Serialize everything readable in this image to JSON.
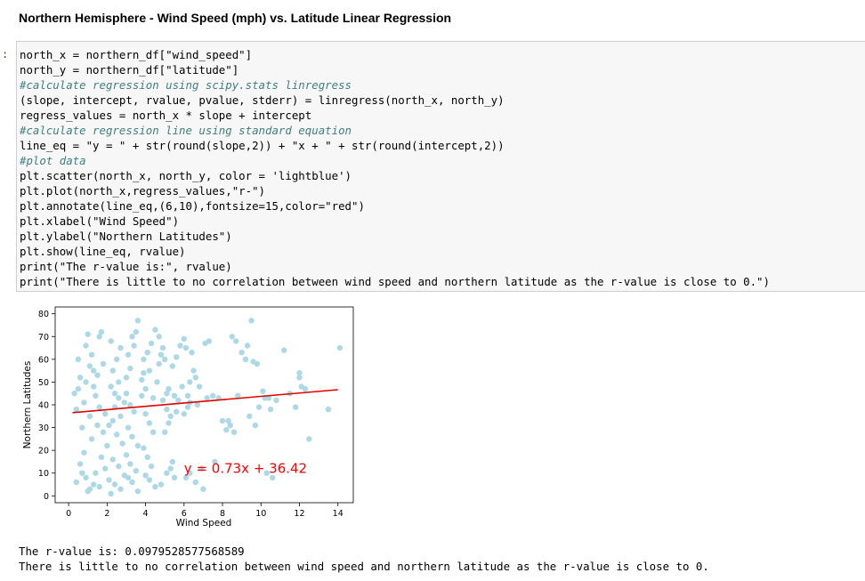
{
  "heading": "Northern Hemisphere - Wind Speed (mph) vs. Latitude Linear Regression",
  "cell": {
    "prompt": ":",
    "code_lines": [
      "north_x = northern_df[\"wind_speed\"]",
      "north_y = northern_df[\"latitude\"]",
      "#calculate regression using scipy.stats linregress",
      "(slope, intercept, rvalue, pvalue, stderr) = linregress(north_x, north_y)",
      "regress_values = north_x * slope + intercept",
      "#calculate regression line using standard equation",
      "line_eq = \"y = \" + str(round(slope,2)) + \"x + \" + str(round(intercept,2))",
      "#plot data",
      "plt.scatter(north_x, north_y, color = 'lightblue')",
      "plt.plot(north_x,regress_values,\"r-\")",
      "plt.annotate(line_eq,(6,10),fontsize=15,color=\"red\")",
      "plt.xlabel(\"Wind Speed\")",
      "plt.ylabel(\"Northern Latitudes\")",
      "plt.show(line_eq, rvalue)",
      "print(\"The r-value is:\", rvalue)",
      "print(\"There is little to no correlation between wind speed and northern latitude as the r-value is close to 0.\")"
    ]
  },
  "output": {
    "line1": "The r-value is: 0.0979528577568589",
    "line2": "There is little to no correlation between wind speed and northern latitude as the r-value is close to 0."
  },
  "colors": {
    "points": "#add8e6",
    "regression": "#e00000",
    "annotation": "#ff0000"
  },
  "chart_data": {
    "type": "scatter",
    "xlabel": "Wind Speed",
    "ylabel": "Northern Latitudes",
    "xlim": [
      -0.7,
      14.8
    ],
    "ylim": [
      -3,
      83
    ],
    "xticks": [
      0,
      2,
      4,
      6,
      8,
      10,
      12,
      14
    ],
    "yticks": [
      0,
      10,
      20,
      30,
      40,
      50,
      60,
      70,
      80
    ],
    "grid": false,
    "annotation": {
      "text": "y = 0.73x + 36.42",
      "x": 6,
      "y": 10
    },
    "regression": {
      "slope": 0.73,
      "intercept": 36.42,
      "x_range": [
        0.2,
        14.0
      ]
    },
    "points": [
      [
        0.3,
        45
      ],
      [
        0.4,
        38
      ],
      [
        0.5,
        47
      ],
      [
        0.6,
        52
      ],
      [
        0.7,
        30
      ],
      [
        0.8,
        41
      ],
      [
        0.5,
        60
      ],
      [
        0.9,
        66
      ],
      [
        1.0,
        71
      ],
      [
        1.1,
        35
      ],
      [
        1.2,
        25
      ],
      [
        0.6,
        14
      ],
      [
        0.8,
        19
      ],
      [
        0.9,
        8
      ],
      [
        1.1,
        3
      ],
      [
        1.3,
        5
      ],
      [
        1.4,
        10
      ],
      [
        0.4,
        6
      ],
      [
        0.7,
        10
      ],
      [
        1.0,
        2
      ],
      [
        1.3,
        48
      ],
      [
        1.5,
        53
      ],
      [
        1.6,
        70
      ],
      [
        1.7,
        72
      ],
      [
        1.2,
        62
      ],
      [
        1.8,
        58
      ],
      [
        1.4,
        44
      ],
      [
        1.6,
        39
      ],
      [
        1.9,
        36
      ],
      [
        1.5,
        31
      ],
      [
        1.8,
        28
      ],
      [
        2.0,
        22
      ],
      [
        1.7,
        17
      ],
      [
        1.9,
        12
      ],
      [
        2.1,
        7
      ],
      [
        1.6,
        4
      ],
      [
        2.2,
        1
      ],
      [
        1.3,
        55
      ],
      [
        1.1,
        57
      ],
      [
        0.9,
        50
      ],
      [
        2.2,
        48
      ],
      [
        2.4,
        45
      ],
      [
        2.6,
        50
      ],
      [
        2.3,
        55
      ],
      [
        2.5,
        60
      ],
      [
        2.7,
        65
      ],
      [
        2.2,
        68
      ],
      [
        2.4,
        39
      ],
      [
        2.7,
        35
      ],
      [
        2.1,
        31
      ],
      [
        2.5,
        27
      ],
      [
        2.8,
        23
      ],
      [
        2.3,
        16
      ],
      [
        2.6,
        13
      ],
      [
        2.9,
        9
      ],
      [
        2.4,
        5
      ],
      [
        2.7,
        3
      ],
      [
        2.9,
        41
      ],
      [
        2.6,
        43
      ],
      [
        2.3,
        33
      ],
      [
        3.0,
        52
      ],
      [
        3.2,
        56
      ],
      [
        3.1,
        62
      ],
      [
        3.4,
        66
      ],
      [
        3.3,
        70
      ],
      [
        3.5,
        72
      ],
      [
        3.0,
        45
      ],
      [
        3.2,
        40
      ],
      [
        3.4,
        37
      ],
      [
        3.1,
        30
      ],
      [
        3.3,
        26
      ],
      [
        3.6,
        22
      ],
      [
        3.0,
        18
      ],
      [
        3.2,
        14
      ],
      [
        3.5,
        11
      ],
      [
        3.1,
        8
      ],
      [
        3.3,
        6
      ],
      [
        3.6,
        2
      ],
      [
        3.8,
        51
      ],
      [
        3.9,
        54
      ],
      [
        3.6,
        77
      ],
      [
        3.8,
        44
      ],
      [
        4.0,
        47
      ],
      [
        4.2,
        55
      ],
      [
        3.9,
        60
      ],
      [
        4.1,
        63
      ],
      [
        4.3,
        67
      ],
      [
        4.0,
        36
      ],
      [
        4.2,
        32
      ],
      [
        4.4,
        28
      ],
      [
        3.9,
        21
      ],
      [
        4.1,
        17
      ],
      [
        4.3,
        13
      ],
      [
        4.0,
        9
      ],
      [
        4.2,
        7
      ],
      [
        4.5,
        4
      ],
      [
        4.4,
        43
      ],
      [
        4.6,
        50
      ],
      [
        4.7,
        58
      ],
      [
        4.8,
        62
      ],
      [
        4.5,
        73
      ],
      [
        4.7,
        70
      ],
      [
        4.9,
        65
      ],
      [
        5.0,
        60
      ],
      [
        5.1,
        45
      ],
      [
        5.2,
        47
      ],
      [
        4.9,
        42
      ],
      [
        5.1,
        38
      ],
      [
        5.3,
        35
      ],
      [
        5.0,
        28
      ],
      [
        5.2,
        32
      ],
      [
        5.4,
        15
      ],
      [
        5.1,
        10
      ],
      [
        5.3,
        12
      ],
      [
        5.5,
        8
      ],
      [
        4.8,
        5
      ],
      [
        5.4,
        57
      ],
      [
        5.6,
        61
      ],
      [
        5.8,
        66
      ],
      [
        5.5,
        44
      ],
      [
        5.7,
        42
      ],
      [
        5.9,
        48
      ],
      [
        6.0,
        69
      ],
      [
        6.1,
        65
      ],
      [
        6.2,
        44
      ],
      [
        6.3,
        41
      ],
      [
        6.0,
        36
      ],
      [
        6.2,
        39
      ],
      [
        6.4,
        63
      ],
      [
        6.5,
        55
      ],
      [
        6.6,
        52
      ],
      [
        6.3,
        50
      ],
      [
        6.8,
        48
      ],
      [
        6.1,
        8
      ],
      [
        6.3,
        10
      ],
      [
        6.6,
        6
      ],
      [
        6.9,
        12
      ],
      [
        7.0,
        3
      ],
      [
        7.2,
        43
      ],
      [
        7.1,
        67
      ],
      [
        7.3,
        68
      ],
      [
        7.6,
        15
      ],
      [
        7.8,
        43
      ],
      [
        8.0,
        33
      ],
      [
        8.3,
        33
      ],
      [
        8.2,
        29
      ],
      [
        8.4,
        31
      ],
      [
        8.6,
        28
      ],
      [
        8.5,
        70
      ],
      [
        8.7,
        68
      ],
      [
        9.0,
        63
      ],
      [
        9.2,
        60
      ],
      [
        9.5,
        77
      ],
      [
        9.3,
        66
      ],
      [
        9.6,
        59
      ],
      [
        9.8,
        58
      ],
      [
        9.7,
        31
      ],
      [
        9.4,
        35
      ],
      [
        9.9,
        39
      ],
      [
        10.2,
        43
      ],
      [
        10.4,
        43
      ],
      [
        10.5,
        38
      ],
      [
        10.8,
        42
      ],
      [
        10.3,
        10
      ],
      [
        10.6,
        8
      ],
      [
        11.2,
        64
      ],
      [
        11.5,
        45
      ],
      [
        11.8,
        39
      ],
      [
        12.0,
        52
      ],
      [
        12.1,
        48
      ],
      [
        12.3,
        47
      ],
      [
        12.5,
        25
      ],
      [
        13.5,
        38
      ],
      [
        14.1,
        65
      ],
      [
        12.0,
        54
      ],
      [
        10.1,
        46
      ],
      [
        8.8,
        44
      ],
      [
        7.5,
        44
      ],
      [
        6.7,
        40
      ],
      [
        5.6,
        37
      ]
    ]
  }
}
